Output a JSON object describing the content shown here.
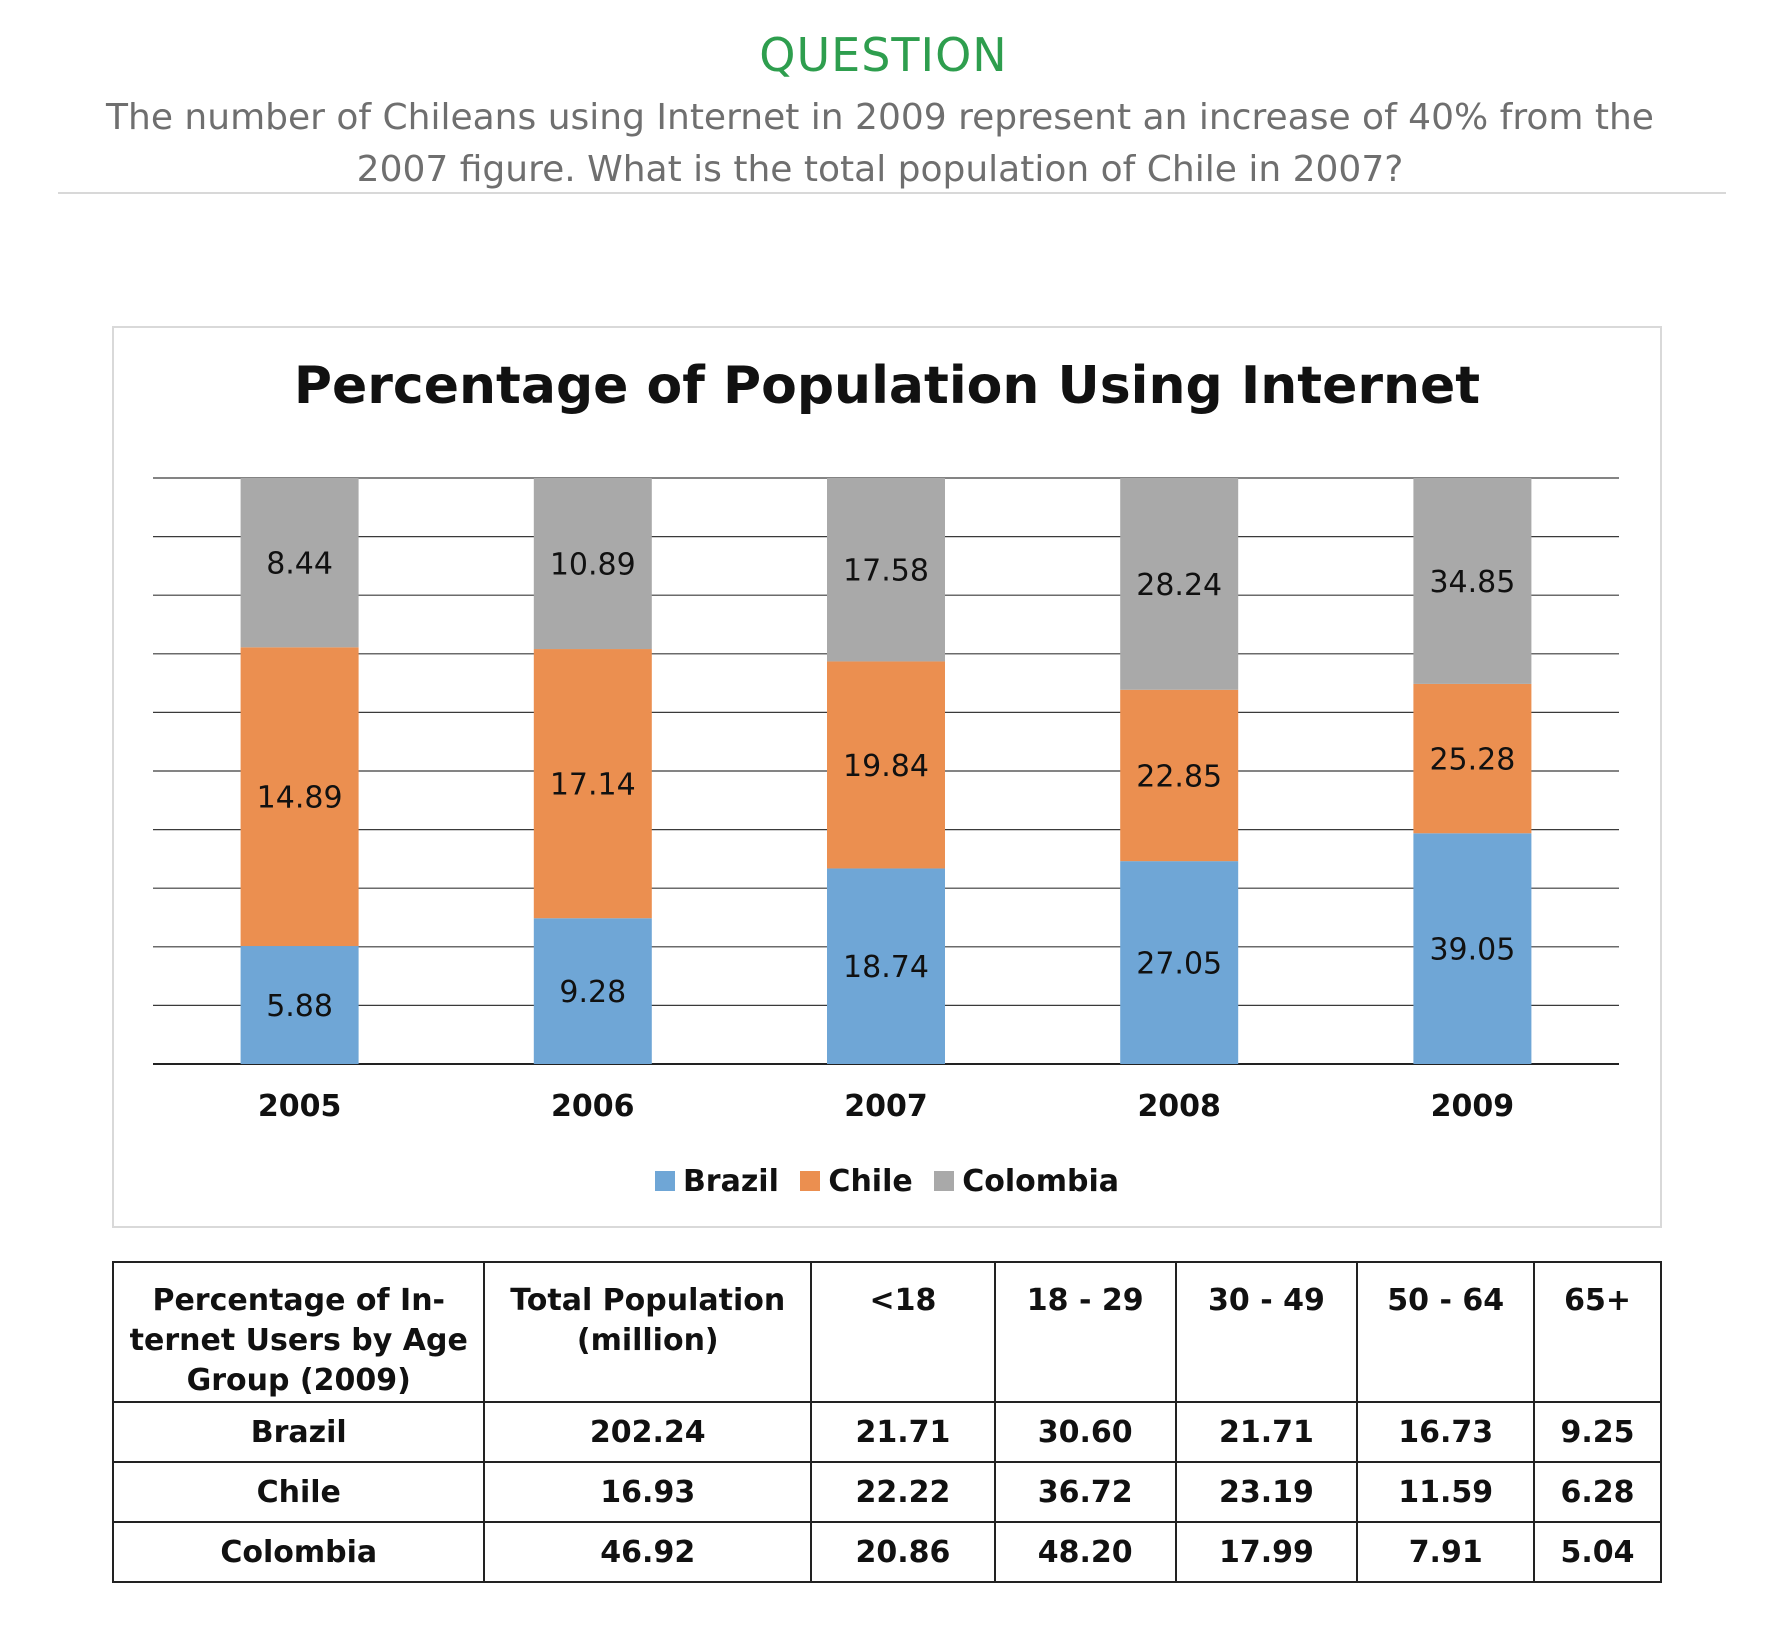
{
  "question": {
    "heading": "QUESTION",
    "text": "The number of Chileans using Internet in 2009 represent an increase of 40% from the 2007 figure. What is the total population of Chile in 2007?"
  },
  "chart_data": {
    "type": "bar",
    "stacked": true,
    "title": "Percentage of Population Using Internet",
    "xlabel": "",
    "ylabel": "",
    "categories": [
      "2005",
      "2006",
      "2007",
      "2008",
      "2009"
    ],
    "series": [
      {
        "name": "Brazil",
        "color": "#6fa6d6",
        "values": [
          5.88,
          9.28,
          18.74,
          27.05,
          39.05
        ]
      },
      {
        "name": "Chile",
        "color": "#eb8f50",
        "values": [
          14.89,
          17.14,
          19.84,
          22.85,
          25.28
        ]
      },
      {
        "name": "Colombia",
        "color": "#a9a9a9",
        "values": [
          8.44,
          10.89,
          17.58,
          28.24,
          34.85
        ]
      }
    ],
    "grid": true,
    "legend": "bottom"
  },
  "table": {
    "headers": [
      "Percentage of In-ternet Users by Age Group (2009)",
      "Total Population (million)",
      "<18",
      "18 - 29",
      "30 - 49",
      "50 - 64",
      "65+"
    ],
    "rows": [
      [
        "Brazil",
        "202.24",
        "21.71",
        "30.60",
        "21.71",
        "16.73",
        "9.25"
      ],
      [
        "Chile",
        "16.93",
        "22.22",
        "36.72",
        "23.19",
        "11.59",
        "6.28"
      ],
      [
        "Colombia",
        "46.92",
        "20.86",
        "48.20",
        "17.99",
        "7.91",
        "5.04"
      ]
    ]
  }
}
